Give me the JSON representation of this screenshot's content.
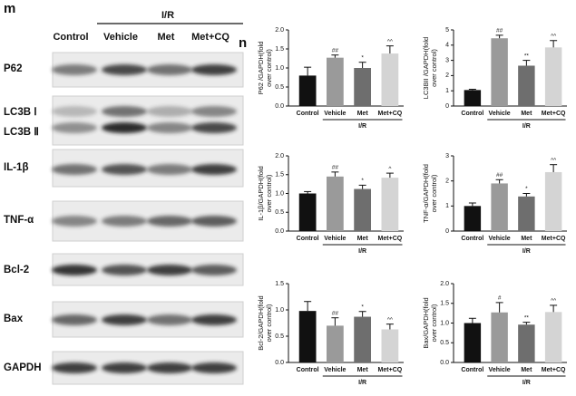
{
  "blot": {
    "panel_label": "m",
    "group_label": "I/R",
    "lanes": [
      "Control",
      "Vehicle",
      "Met",
      "Met+CQ"
    ],
    "proteins": [
      "P62",
      "LC3B Ⅰ",
      "LC3B Ⅱ",
      "IL-1β",
      "TNF-α",
      "Bcl-2",
      "Bax",
      "GAPDH"
    ]
  },
  "charts_panel_label": "n",
  "chart_data": [
    {
      "type": "bar",
      "ylabel": [
        "P62 /GAPDH(fold",
        "over control)"
      ],
      "categories": [
        "Control",
        "Vehicle",
        "Met",
        "Met+CQ"
      ],
      "group_label": "I/R",
      "values": [
        0.8,
        1.27,
        1.0,
        1.38
      ],
      "errors": [
        0.22,
        0.07,
        0.15,
        0.2
      ],
      "annotations": [
        null,
        "##",
        "*",
        "^^"
      ],
      "colors": [
        "#111111",
        "#9a9a9a",
        "#6e6e6e",
        "#d4d4d4"
      ],
      "ylim": [
        0,
        2
      ],
      "yticks": [
        {
          "value": 0,
          "label": "0.0"
        },
        {
          "value": 0.5,
          "label": "0.5"
        },
        {
          "value": 1,
          "label": "1.0"
        },
        {
          "value": 1.5,
          "label": "1.5"
        },
        {
          "value": 2,
          "label": "2.0"
        }
      ]
    },
    {
      "type": "bar",
      "ylabel": [
        "LC3BII /GAPDH(fold",
        "over control)"
      ],
      "categories": [
        "Control",
        "Vehicle",
        "Met",
        "Met+CQ"
      ],
      "group_label": "I/R",
      "values": [
        1.05,
        4.45,
        2.65,
        3.85
      ],
      "errors": [
        0.05,
        0.2,
        0.35,
        0.45
      ],
      "annotations": [
        null,
        "##",
        "**",
        "^^"
      ],
      "colors": [
        "#111111",
        "#9a9a9a",
        "#6e6e6e",
        "#d4d4d4"
      ],
      "ylim": [
        0,
        5
      ],
      "yticks": [
        0,
        1,
        2,
        3,
        4,
        5
      ]
    },
    {
      "type": "bar",
      "ylabel": [
        "IL-1β/GAPDH(fold",
        "over control)"
      ],
      "categories": [
        "Control",
        "Vehicle",
        "Met",
        "Met+CQ"
      ],
      "group_label": "I/R",
      "values": [
        1.0,
        1.45,
        1.12,
        1.42
      ],
      "errors": [
        0.05,
        0.12,
        0.1,
        0.12
      ],
      "annotations": [
        null,
        "##",
        "*",
        "^"
      ],
      "colors": [
        "#111111",
        "#9a9a9a",
        "#6e6e6e",
        "#d4d4d4"
      ],
      "ylim": [
        0,
        2
      ],
      "yticks": [
        {
          "value": 0,
          "label": "0.0"
        },
        {
          "value": 0.5,
          "label": "0.5"
        },
        {
          "value": 1,
          "label": "1.0"
        },
        {
          "value": 1.5,
          "label": "1.5"
        },
        {
          "value": 2,
          "label": "2.0"
        }
      ]
    },
    {
      "type": "bar",
      "ylabel": [
        "TNF-α/GAPDH(fold",
        "over control)"
      ],
      "categories": [
        "Control",
        "Vehicle",
        "Met",
        "Met+CQ"
      ],
      "group_label": "I/R",
      "values": [
        1.0,
        1.9,
        1.38,
        2.35
      ],
      "errors": [
        0.12,
        0.15,
        0.12,
        0.3
      ],
      "annotations": [
        null,
        "##",
        "*",
        "^^"
      ],
      "colors": [
        "#111111",
        "#9a9a9a",
        "#6e6e6e",
        "#d4d4d4"
      ],
      "ylim": [
        0,
        3
      ],
      "yticks": [
        0,
        1,
        2,
        3
      ]
    },
    {
      "type": "bar",
      "ylabel": [
        "Bcl-2/GAPDH(fold",
        "over control)"
      ],
      "categories": [
        "Control",
        "Vehicle",
        "Met",
        "Met+CQ"
      ],
      "group_label": "I/R",
      "values": [
        0.98,
        0.7,
        0.87,
        0.63
      ],
      "errors": [
        0.18,
        0.15,
        0.1,
        0.1
      ],
      "annotations": [
        null,
        "##",
        "*",
        "^^"
      ],
      "colors": [
        "#111111",
        "#9a9a9a",
        "#6e6e6e",
        "#d4d4d4"
      ],
      "ylim": [
        0,
        1.5
      ],
      "yticks": [
        {
          "value": 0,
          "label": "0.0"
        },
        {
          "value": 0.5,
          "label": "0.5"
        },
        {
          "value": 1,
          "label": "1.0"
        },
        {
          "value": 1.5,
          "label": "1.5"
        }
      ]
    },
    {
      "type": "bar",
      "ylabel": [
        "Bax/GAPDH(fold",
        "over control)"
      ],
      "categories": [
        "Control",
        "Vehicle",
        "Met",
        "Met+CQ"
      ],
      "group_label": "I/R",
      "values": [
        1.0,
        1.27,
        0.96,
        1.28
      ],
      "errors": [
        0.12,
        0.25,
        0.06,
        0.17
      ],
      "annotations": [
        null,
        "#",
        "**",
        "^^"
      ],
      "colors": [
        "#111111",
        "#9a9a9a",
        "#6e6e6e",
        "#d4d4d4"
      ],
      "ylim": [
        0,
        2
      ],
      "yticks": [
        {
          "value": 0,
          "label": "0.0"
        },
        {
          "value": 0.5,
          "label": "0.5"
        },
        {
          "value": 1,
          "label": "1.0"
        },
        {
          "value": 1.5,
          "label": "1.5"
        },
        {
          "value": 2,
          "label": "2.0"
        }
      ]
    }
  ]
}
